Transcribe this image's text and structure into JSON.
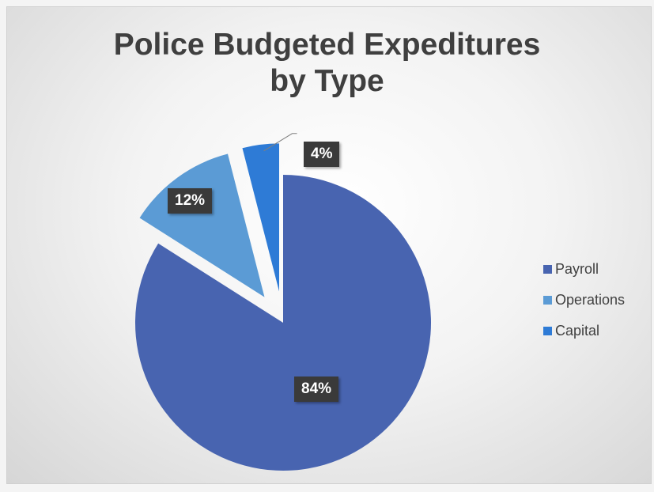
{
  "chart_data": {
    "type": "pie",
    "title": "Police Budgeted Expeditures by Type",
    "title_lines": [
      "Police Budgeted Expeditures",
      "by Type"
    ],
    "categories": [
      "Payroll",
      "Operations",
      "Capital"
    ],
    "values": [
      84,
      12,
      4
    ],
    "data_labels": [
      "84%",
      "12%",
      "4%"
    ],
    "exploded": [
      false,
      true,
      true
    ],
    "colors": [
      "#4864b0",
      "#5b9bd5",
      "#2e7bd6"
    ],
    "legend_position": "right"
  }
}
